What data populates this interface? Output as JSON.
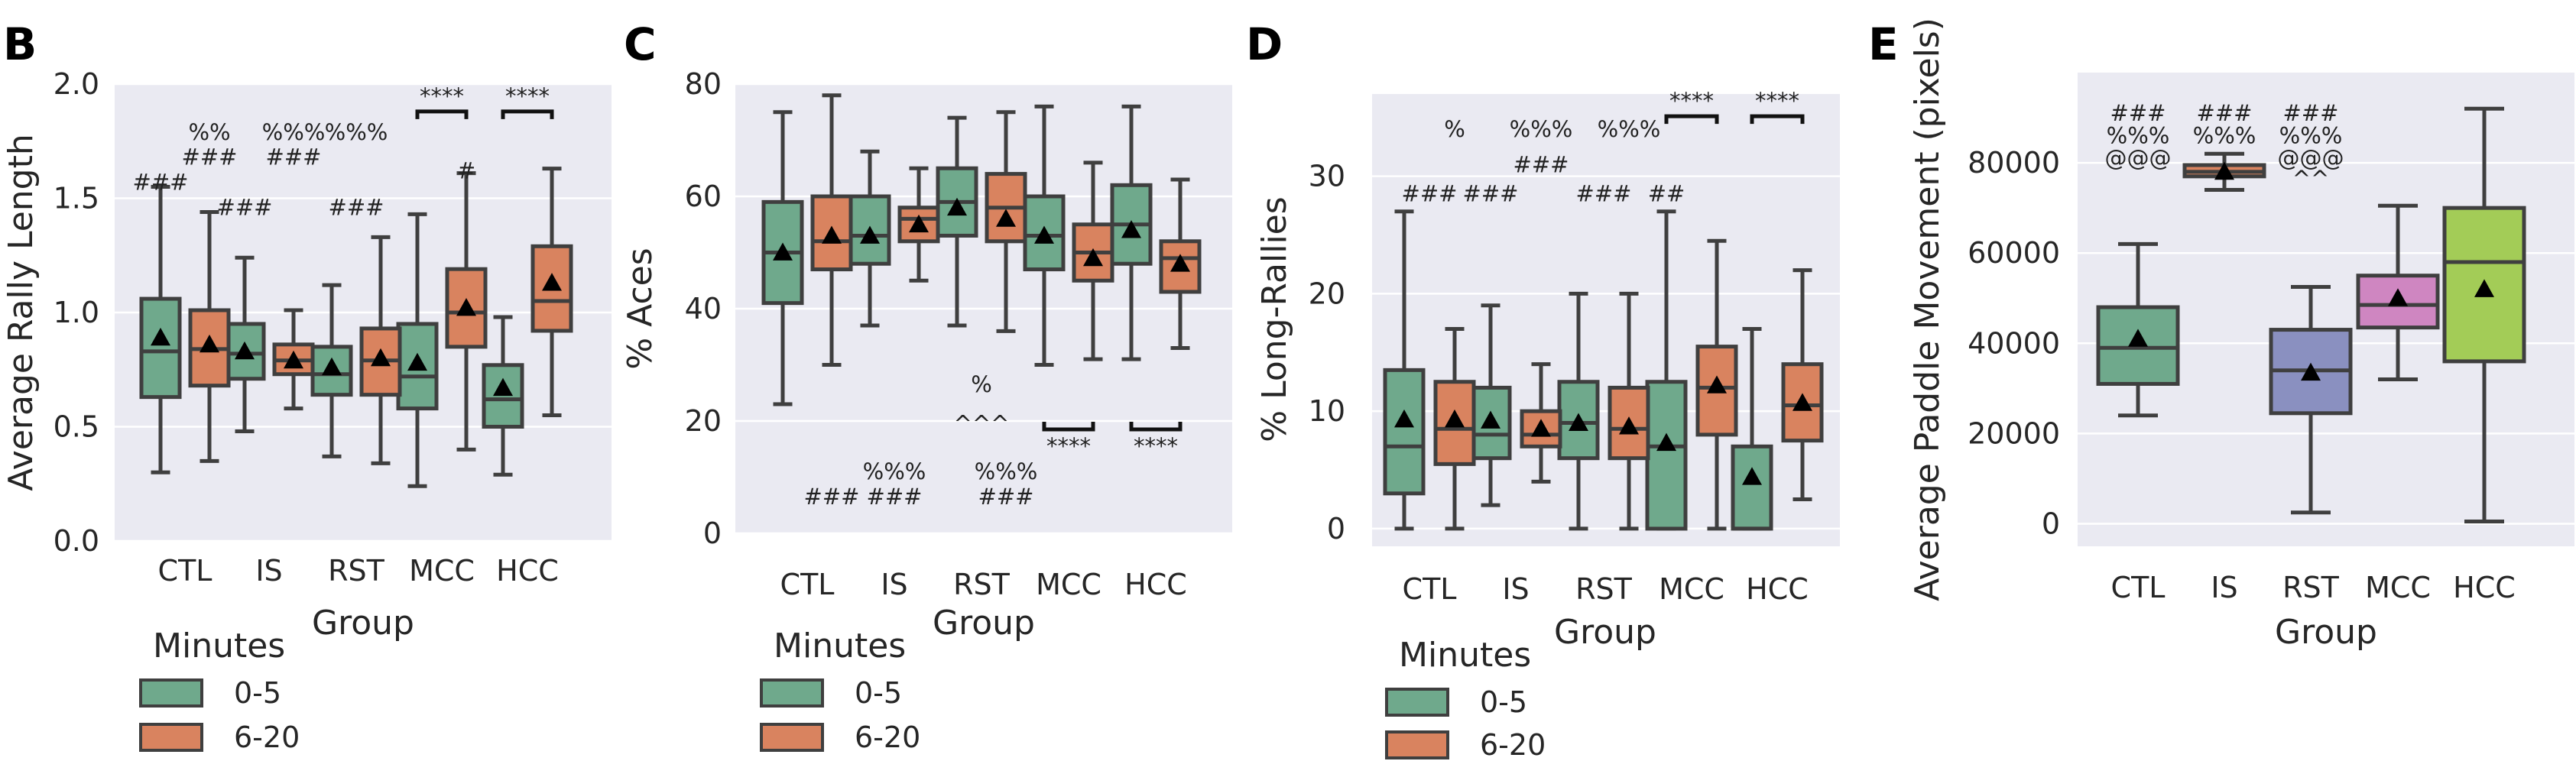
{
  "colors": {
    "minutes_0_5": "#6fa98c",
    "minutes_6_20": "#d9835f",
    "CTL": "#6fa98c",
    "IS": "#d9835f",
    "RST": "#8a90c0",
    "MCC": "#cf86c1",
    "HCC": "#a3cc57",
    "panel_bg": "#eaeaf2"
  },
  "legend": {
    "title": "Minutes",
    "entries": [
      "0-5",
      "6-20"
    ]
  },
  "chart_data": [
    {
      "panel": "B",
      "type": "box",
      "ylabel": "Average Rally Length",
      "xlabel": "Group",
      "ylim": [
        0,
        2.0
      ],
      "yticks": [
        "0.0",
        "0.5",
        "1.0",
        "1.5",
        "2.0"
      ],
      "categories": [
        "CTL",
        "IS",
        "RST",
        "MCC",
        "HCC"
      ],
      "series": [
        {
          "name": "0-5",
          "boxes": [
            {
              "min": 0.3,
              "q1": 0.63,
              "median": 0.83,
              "q3": 1.06,
              "max": 1.55,
              "mean": 0.89
            },
            {
              "min": 0.48,
              "q1": 0.71,
              "median": 0.82,
              "q3": 0.95,
              "max": 1.24,
              "mean": 0.83
            },
            {
              "min": 0.37,
              "q1": 0.64,
              "median": 0.73,
              "q3": 0.85,
              "max": 1.12,
              "mean": 0.76
            },
            {
              "min": 0.24,
              "q1": 0.58,
              "median": 0.72,
              "q3": 0.95,
              "max": 1.43,
              "mean": 0.78
            },
            {
              "min": 0.29,
              "q1": 0.5,
              "median": 0.62,
              "q3": 0.77,
              "max": 0.98,
              "mean": 0.67
            }
          ]
        },
        {
          "name": "6-20",
          "boxes": [
            {
              "min": 0.35,
              "q1": 0.68,
              "median": 0.84,
              "q3": 1.01,
              "max": 1.44,
              "mean": 0.86
            },
            {
              "min": 0.58,
              "q1": 0.73,
              "median": 0.79,
              "q3": 0.86,
              "max": 1.01,
              "mean": 0.79
            },
            {
              "min": 0.34,
              "q1": 0.64,
              "median": 0.79,
              "q3": 0.93,
              "max": 1.33,
              "mean": 0.8
            },
            {
              "min": 0.4,
              "q1": 0.85,
              "median": 1.0,
              "q3": 1.19,
              "max": 1.61,
              "mean": 1.02
            },
            {
              "min": 0.55,
              "q1": 0.92,
              "median": 1.05,
              "q3": 1.29,
              "max": 1.63,
              "mean": 1.13
            }
          ]
        }
      ],
      "annotations": [
        {
          "text": "###",
          "cat": 0,
          "side": 0,
          "y": 1.57
        },
        {
          "text": "%%",
          "cat": 0,
          "side": 1,
          "y": 1.79
        },
        {
          "text": "###",
          "cat": 0,
          "side": 1,
          "y": 1.68
        },
        {
          "text": "###",
          "cat": 1,
          "side": 0,
          "y": 1.46
        },
        {
          "text": "%%%",
          "cat": 1,
          "side": 1,
          "y": 1.79
        },
        {
          "text": "###",
          "cat": 1,
          "side": 1,
          "y": 1.68
        },
        {
          "text": "%%%",
          "cat": 2,
          "side": 0.5,
          "y": 1.79
        },
        {
          "text": "###",
          "cat": 2,
          "side": 0.5,
          "y": 1.46
        },
        {
          "text": "****",
          "cat": 3,
          "side": 0.5,
          "y": 1.9,
          "bracket": true
        },
        {
          "text": "#",
          "cat": 3,
          "side": 1,
          "y": 1.62
        },
        {
          "text": "****",
          "cat": 4,
          "side": 0.5,
          "y": 1.9,
          "bracket": true
        }
      ]
    },
    {
      "panel": "C",
      "type": "box",
      "ylabel": "% Aces",
      "xlabel": "Group",
      "ylim": [
        0,
        80
      ],
      "yticks": [
        "0",
        "20",
        "40",
        "60",
        "80"
      ],
      "categories": [
        "CTL",
        "IS",
        "RST",
        "MCC",
        "HCC"
      ],
      "series": [
        {
          "name": "0-5",
          "boxes": [
            {
              "min": 23,
              "q1": 41,
              "median": 50,
              "q3": 59,
              "max": 75,
              "mean": 50
            },
            {
              "min": 37,
              "q1": 48,
              "median": 53,
              "q3": 60,
              "max": 68,
              "mean": 53
            },
            {
              "min": 37,
              "q1": 53,
              "median": 59,
              "q3": 65,
              "max": 74,
              "mean": 58
            },
            {
              "min": 30,
              "q1": 47,
              "median": 53,
              "q3": 60,
              "max": 76,
              "mean": 53
            },
            {
              "min": 31,
              "q1": 48,
              "median": 55,
              "q3": 62,
              "max": 76,
              "mean": 54
            }
          ]
        },
        {
          "name": "6-20",
          "boxes": [
            {
              "min": 30,
              "q1": 47,
              "median": 52,
              "q3": 60,
              "max": 78,
              "mean": 53
            },
            {
              "min": 45,
              "q1": 52,
              "median": 56,
              "q3": 58,
              "max": 65,
              "mean": 55
            },
            {
              "min": 36,
              "q1": 52,
              "median": 58,
              "q3": 64,
              "max": 75,
              "mean": 56
            },
            {
              "min": 31,
              "q1": 45,
              "median": 50,
              "q3": 55,
              "max": 66,
              "mean": 49
            },
            {
              "min": 33,
              "q1": 43,
              "median": 49,
              "q3": 52,
              "max": 63,
              "mean": 48
            }
          ]
        }
      ],
      "annotations": [
        {
          "text": "###",
          "cat": 0,
          "side": 1,
          "y": 6.5
        },
        {
          "text": "%%%",
          "cat": 1,
          "side": 0.5,
          "y": 11
        },
        {
          "text": "###",
          "cat": 1,
          "side": 0.5,
          "y": 6.5
        },
        {
          "text": "%",
          "cat": 2,
          "side": 0.5,
          "y": 26.5
        },
        {
          "text": "^^^",
          "cat": 2,
          "side": 0.5,
          "y": 19.5
        },
        {
          "text": "%%%",
          "cat": 2,
          "side": 1,
          "y": 11
        },
        {
          "text": "###",
          "cat": 2,
          "side": 1,
          "y": 6.5
        },
        {
          "text": "****",
          "cat": 3,
          "side": 0.5,
          "y": 18.5,
          "bracket": true,
          "below": true
        },
        {
          "text": "****",
          "cat": 4,
          "side": 0.5,
          "y": 18.5,
          "bracket": true,
          "below": true
        }
      ]
    },
    {
      "panel": "D",
      "type": "box",
      "ylabel": "% Long-Rallies",
      "xlabel": "Group",
      "ylim": [
        -1.5,
        37
      ],
      "yticks": [
        "0",
        "10",
        "20",
        "30"
      ],
      "ytick_values": [
        0,
        10,
        20,
        30
      ],
      "categories": [
        "CTL",
        "IS",
        "RST",
        "MCC",
        "HCC"
      ],
      "series": [
        {
          "name": "0-5",
          "boxes": [
            {
              "min": 0,
              "q1": 3,
              "median": 7,
              "q3": 13.5,
              "max": 27,
              "mean": 9.3
            },
            {
              "min": 2,
              "q1": 6,
              "median": 8,
              "q3": 12,
              "max": 19,
              "mean": 9.2
            },
            {
              "min": 0,
              "q1": 6,
              "median": 9,
              "q3": 12.5,
              "max": 20,
              "mean": 9.0
            },
            {
              "min": 0,
              "q1": 0,
              "median": 7,
              "q3": 12.5,
              "max": 27,
              "mean": 7.3
            },
            {
              "min": 0,
              "q1": 0,
              "median": 0,
              "q3": 7,
              "max": 17,
              "mean": 4.4
            }
          ]
        },
        {
          "name": "6-20",
          "boxes": [
            {
              "min": 0,
              "q1": 5.5,
              "median": 8.5,
              "q3": 12.5,
              "max": 17,
              "mean": 9.3
            },
            {
              "min": 4,
              "q1": 7,
              "median": 8,
              "q3": 10,
              "max": 14,
              "mean": 8.5
            },
            {
              "min": 0,
              "q1": 6,
              "median": 8.5,
              "q3": 12,
              "max": 20,
              "mean": 8.7
            },
            {
              "min": 0,
              "q1": 8,
              "median": 12,
              "q3": 15.5,
              "max": 24.5,
              "mean": 12.2
            },
            {
              "min": 2.5,
              "q1": 7.5,
              "median": 10.5,
              "q3": 14,
              "max": 22,
              "mean": 10.7
            }
          ]
        }
      ],
      "annotations": [
        {
          "text": "###",
          "cat": 0,
          "side": 0.5,
          "y": 28.5
        },
        {
          "text": "%",
          "cat": 0,
          "side": 1,
          "y": 34
        },
        {
          "text": "%%%",
          "cat": 1,
          "side": 1,
          "y": 34
        },
        {
          "text": "###",
          "cat": 1,
          "side": 1,
          "y": 31
        },
        {
          "text": "###",
          "cat": 1,
          "side": 0,
          "y": 28.5
        },
        {
          "text": "%%%",
          "cat": 2,
          "side": 1,
          "y": 34
        },
        {
          "text": "###",
          "cat": 2,
          "side": 0.5,
          "y": 28.5
        },
        {
          "text": "****",
          "cat": 3,
          "side": 0.5,
          "y": 35.5,
          "bracket": true
        },
        {
          "text": "##",
          "cat": 3,
          "side": 0,
          "y": 28.5
        },
        {
          "text": "****",
          "cat": 4,
          "side": 0.5,
          "y": 35.5,
          "bracket": true
        }
      ]
    },
    {
      "panel": "E",
      "type": "box",
      "ylabel": "Average Paddle Movement (pixels)",
      "xlabel": "Group",
      "ylim": [
        -5000,
        100000
      ],
      "yticks": [
        "0",
        "20000",
        "40000",
        "60000",
        "80000"
      ],
      "ytick_values": [
        0,
        20000,
        40000,
        60000,
        80000
      ],
      "categories": [
        "CTL",
        "IS",
        "RST",
        "MCC",
        "HCC"
      ],
      "boxes": [
        {
          "min": 24000,
          "q1": 31000,
          "median": 39000,
          "q3": 48000,
          "max": 62000,
          "mean": 41000
        },
        {
          "min": 74000,
          "q1": 77000,
          "median": 78000,
          "q3": 79500,
          "max": 82000,
          "mean": 78000
        },
        {
          "min": 2500,
          "q1": 24500,
          "median": 34000,
          "q3": 43000,
          "max": 52500,
          "mean": 33500
        },
        {
          "min": 32000,
          "q1": 43500,
          "median": 48500,
          "q3": 55000,
          "max": 70500,
          "mean": 50000
        },
        {
          "min": 500,
          "q1": 36000,
          "median": 58000,
          "q3": 70000,
          "max": 92000,
          "mean": 52000
        }
      ],
      "annotations": [
        {
          "text": "###",
          "cat": 0,
          "y": 91000
        },
        {
          "text": "%%%",
          "cat": 0,
          "y": 86000
        },
        {
          "text": "@@@",
          "cat": 0,
          "y": 81000
        },
        {
          "text": "###",
          "cat": 1,
          "y": 91000
        },
        {
          "text": "%%%",
          "cat": 1,
          "y": 86000
        },
        {
          "text": "###",
          "cat": 2,
          "y": 91000
        },
        {
          "text": "%%%",
          "cat": 2,
          "y": 86000
        },
        {
          "text": "@@@",
          "cat": 2,
          "y": 81000
        },
        {
          "text": "^^",
          "cat": 2,
          "y": 76500
        }
      ]
    }
  ]
}
